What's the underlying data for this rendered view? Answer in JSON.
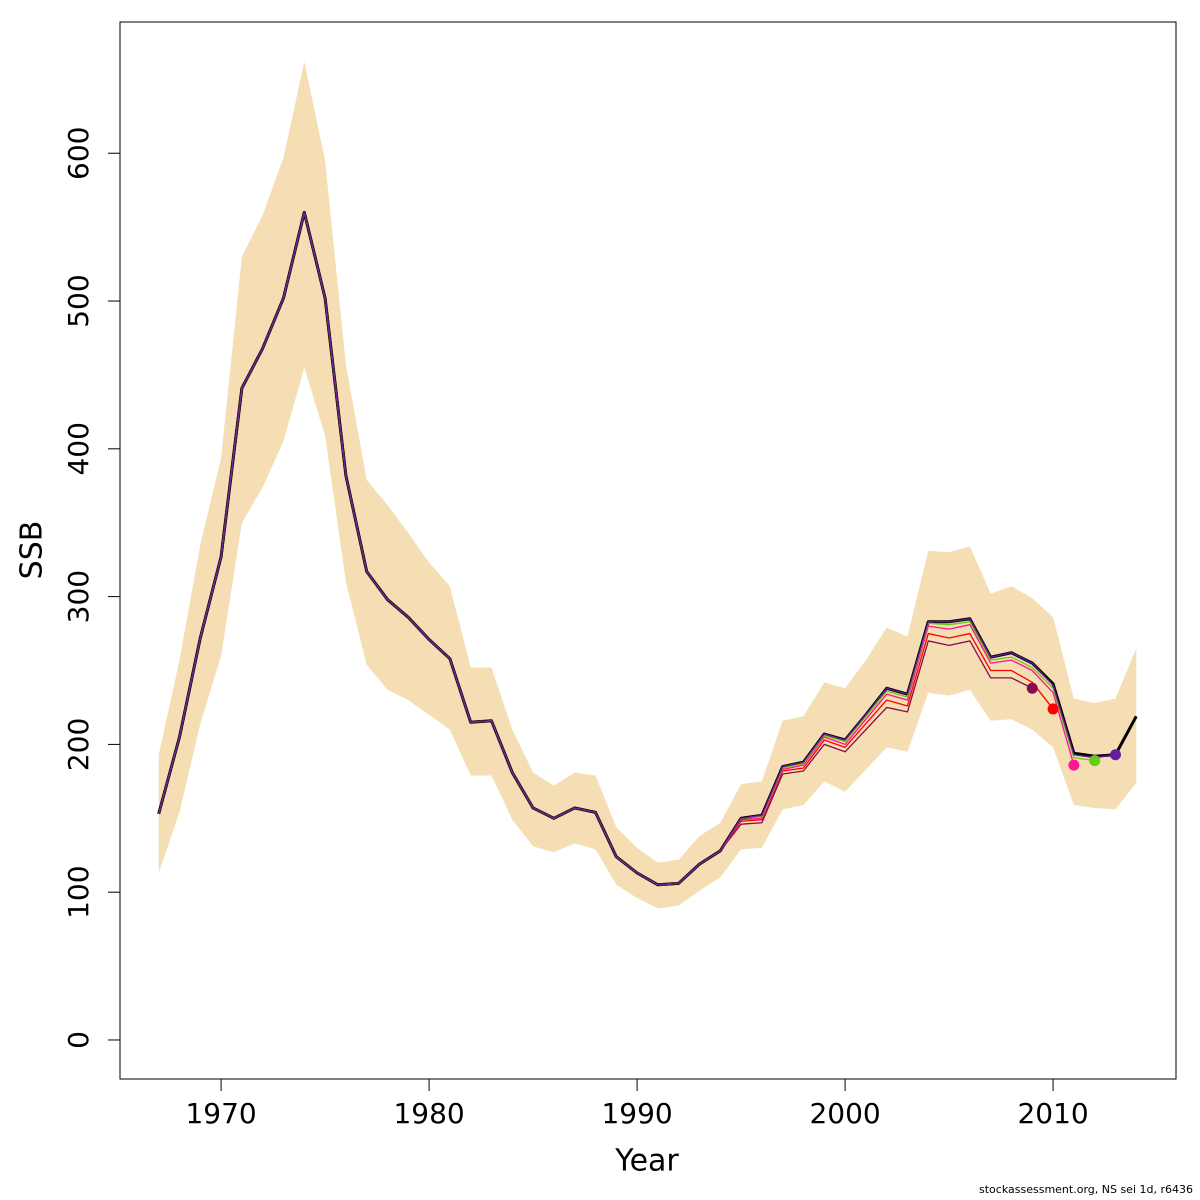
{
  "chart_data": {
    "type": "line",
    "xlabel": "Year",
    "ylabel": "SSB",
    "footer": "stockassessment.org, NS sei 1d, r6436",
    "xlim": [
      1965.14,
      2015.91
    ],
    "ylim": [
      -26.4,
      688.8
    ],
    "xticks": [
      1970,
      1980,
      1990,
      2000,
      2010
    ],
    "yticks": [
      0,
      100,
      200,
      300,
      400,
      500,
      600
    ],
    "x": [
      1967,
      1968,
      1969,
      1970,
      1971,
      1972,
      1973,
      1974,
      1975,
      1976,
      1977,
      1978,
      1979,
      1980,
      1981,
      1982,
      1983,
      1984,
      1985,
      1986,
      1987,
      1988,
      1989,
      1990,
      1991,
      1992,
      1993,
      1994,
      1995,
      1996,
      1997,
      1998,
      1999,
      2000,
      2001,
      2002,
      2003,
      2004,
      2005,
      2006,
      2007,
      2008,
      2009,
      2010,
      2011,
      2012,
      2013,
      2014
    ],
    "band": {
      "color": "#f5deb3",
      "upper": [
        193,
        257,
        335,
        394,
        530,
        558,
        597,
        662,
        595,
        457,
        379,
        362,
        343,
        323,
        307,
        252,
        252,
        210,
        181,
        172,
        181,
        179,
        144,
        130,
        120,
        122,
        138,
        147,
        173,
        175,
        216,
        219,
        242,
        238,
        257,
        279,
        273,
        331,
        330,
        334,
        302,
        307,
        299,
        286,
        231,
        228,
        231,
        265
      ],
      "lower": [
        113,
        154,
        214,
        260,
        350,
        374,
        405,
        455,
        409,
        310,
        254,
        237,
        230,
        220,
        210,
        179,
        179,
        149,
        131,
        127,
        133,
        129,
        105,
        96,
        89,
        91,
        101,
        110,
        129,
        130,
        156,
        159,
        175,
        168,
        183,
        198,
        195,
        235,
        233,
        237,
        216,
        217,
        210,
        198,
        159,
        157,
        156,
        174
      ]
    },
    "series": [
      {
        "color": "#000000",
        "values": [
          153,
          205,
          272,
          327,
          441,
          468,
          502,
          560,
          502,
          382,
          317,
          298,
          286,
          271,
          258,
          215,
          216,
          181,
          157,
          150,
          157,
          154,
          124,
          113,
          105,
          106,
          119,
          128,
          150,
          152,
          185,
          188,
          207,
          203,
          220,
          238,
          234,
          283,
          283,
          285,
          259,
          262,
          255,
          241,
          194,
          192,
          193,
          219
        ]
      },
      {
        "color": "#8b0a50",
        "values": [
          153,
          205,
          272,
          327,
          441,
          468,
          502,
          560,
          502,
          382,
          317,
          298,
          286,
          271,
          258,
          215,
          216,
          181,
          157,
          150,
          157,
          154,
          124,
          113,
          105,
          106,
          119,
          128,
          146,
          147,
          180,
          182,
          200,
          195,
          210,
          225,
          222,
          270,
          267,
          270,
          245,
          245,
          238,
          null,
          null,
          null,
          null,
          null
        ]
      },
      {
        "color": "#ff0000",
        "values": [
          153,
          205,
          272,
          327,
          441,
          468,
          502,
          560,
          502,
          382,
          317,
          298,
          286,
          271,
          258,
          215,
          216,
          181,
          157,
          150,
          157,
          154,
          124,
          113,
          105,
          106,
          119,
          128,
          148,
          149,
          182,
          184,
          203,
          198,
          214,
          230,
          226,
          275,
          272,
          275,
          250,
          250,
          242,
          224,
          null,
          null,
          null,
          null
        ]
      },
      {
        "color": "#ff1493",
        "values": [
          153,
          205,
          272,
          327,
          441,
          468,
          502,
          560,
          502,
          382,
          317,
          298,
          286,
          271,
          258,
          215,
          216,
          181,
          157,
          150,
          157,
          154,
          124,
          113,
          105,
          106,
          119,
          128,
          149,
          150,
          183,
          186,
          205,
          200,
          217,
          234,
          230,
          280,
          278,
          281,
          255,
          257,
          250,
          235,
          186,
          null,
          null,
          null
        ]
      },
      {
        "color": "#66cc11",
        "values": [
          153,
          205,
          272,
          327,
          441,
          468,
          502,
          560,
          502,
          382,
          317,
          298,
          286,
          271,
          258,
          215,
          216,
          181,
          157,
          150,
          157,
          154,
          124,
          113,
          105,
          106,
          119,
          128,
          150,
          151,
          184,
          187,
          206,
          202,
          219,
          236,
          232,
          282,
          281,
          283,
          257,
          259,
          252,
          238,
          191,
          189,
          null,
          null
        ]
      },
      {
        "color": "#6a1aa0",
        "values": [
          153,
          205,
          272,
          327,
          441,
          468,
          502,
          560,
          502,
          382,
          317,
          298,
          286,
          271,
          258,
          215,
          216,
          181,
          157,
          150,
          157,
          154,
          124,
          113,
          105,
          106,
          119,
          128,
          150,
          152,
          185,
          188,
          207,
          203,
          220,
          238,
          234,
          283,
          283,
          285,
          259,
          262,
          255,
          240,
          193,
          191,
          193,
          null
        ]
      }
    ]
  }
}
